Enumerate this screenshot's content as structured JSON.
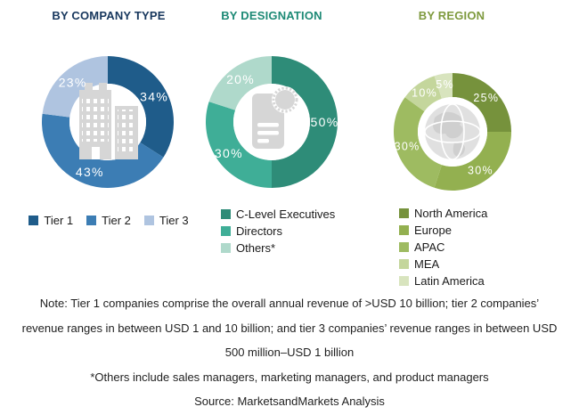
{
  "chart_data": [
    {
      "type": "pie",
      "variant": "donut",
      "title": "BY COMPANY TYPE",
      "title_color": "#17375D",
      "labels": [
        "Tier 1",
        "Tier 2",
        "Tier 3"
      ],
      "values": [
        34,
        43,
        23
      ],
      "value_labels": [
        "34%",
        "43%",
        "23%"
      ],
      "colors": [
        "#1F5C8A",
        "#3C7DB4",
        "#AFC4E0"
      ],
      "value_label_color": "#FFFFFF",
      "center_icon": "buildings-icon",
      "legend_position": "bottom-horizontal",
      "start_angle_deg": 0,
      "direction": "clockwise"
    },
    {
      "type": "pie",
      "variant": "donut",
      "title": "BY DESIGNATION",
      "title_color": "#1E8A76",
      "labels": [
        "C-Level Executives",
        "Directors",
        "Others*"
      ],
      "values": [
        50,
        30,
        20
      ],
      "value_labels": [
        "50%",
        "30%",
        "20%"
      ],
      "colors": [
        "#2E8C78",
        "#3FAE97",
        "#AFD9CB"
      ],
      "value_label_color": "#FFFFFF",
      "center_icon": "id-badge-icon",
      "legend_position": "bottom-vertical",
      "start_angle_deg": 0,
      "direction": "clockwise"
    },
    {
      "type": "pie",
      "variant": "donut",
      "title": "BY REGION",
      "title_color": "#7E9A3E",
      "labels": [
        "North America",
        "Europe",
        "APAC",
        "MEA",
        "Latin America"
      ],
      "values": [
        25,
        30,
        30,
        10,
        5
      ],
      "value_labels": [
        "25%",
        "30%",
        "30%",
        "10%",
        "5%"
      ],
      "colors": [
        "#76923C",
        "#93B050",
        "#9EBB61",
        "#C4D69C",
        "#D8E4BE"
      ],
      "value_label_color": "#FFFFFF",
      "center_icon": "globe-icon",
      "legend_position": "bottom-vertical",
      "start_angle_deg": 0,
      "direction": "clockwise"
    }
  ],
  "notes": {
    "lines": [
      "Note: Tier 1 companies comprise the overall annual revenue of >USD 10 billion; tier 2 companies’",
      "revenue ranges in between USD 1 and 10 billion; and tier 3 companies’ revenue ranges in between USD",
      "500 million–USD 1 billion",
      "*Others include sales managers, marketing managers, and product managers",
      "Source: MarketsandMarkets Analysis"
    ]
  }
}
